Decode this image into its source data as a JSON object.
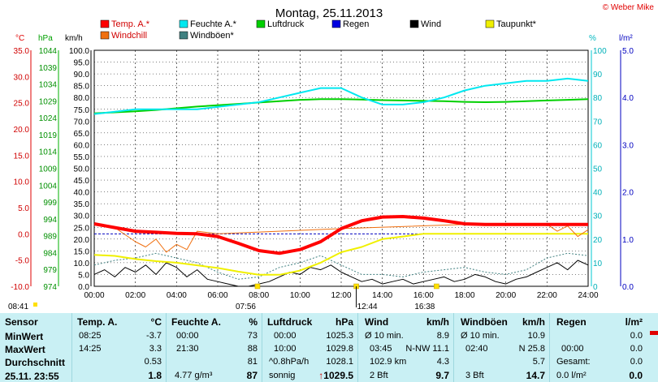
{
  "title": "Montag, 25.11.2013",
  "copyright": "© Weber Mike",
  "colors": {
    "temp": "#ff0000",
    "humidity": "#00e8f0",
    "pressure": "#00d000",
    "rain": "#0000e0",
    "wind": "#000000",
    "dewpoint": "#f0f000",
    "windchill": "#f07010",
    "gust": "#408080",
    "panel": "#c9f0f4"
  },
  "units": {
    "temp": "°C",
    "pressure": "hPa",
    "speed": "km/h",
    "humidity": "%",
    "rain": "l/m²"
  },
  "legend": [
    {
      "label": "Temp. A.*",
      "color": "#ff0000"
    },
    {
      "label": "Feuchte A.*",
      "color": "#00e8f0"
    },
    {
      "label": "Luftdruck",
      "color": "#00d000"
    },
    {
      "label": "Regen",
      "color": "#0000e0"
    },
    {
      "label": "Wind",
      "color": "#000000"
    },
    {
      "label": "Taupunkt*",
      "color": "#f0f000"
    },
    {
      "label": "Windchill",
      "color": "#f07010"
    },
    {
      "label": "Windböen*",
      "color": "#408080"
    }
  ],
  "axes": {
    "temp_ticks": [
      "35.0",
      "30.0",
      "25.0",
      "20.0",
      "15.0",
      "10.0",
      "5.0",
      "0.0",
      "-5.0",
      "-10.0"
    ],
    "pressure_ticks": [
      "1044",
      "1039",
      "1034",
      "1029",
      "1024",
      "1019",
      "1014",
      "1009",
      "1004",
      "999",
      "994",
      "989",
      "984",
      "979",
      "974"
    ],
    "speed_ticks": [
      "100.0",
      "95.0",
      "90.0",
      "85.0",
      "80.0",
      "75.0",
      "70.0",
      "65.0",
      "60.0",
      "55.0",
      "50.0",
      "45.0",
      "40.0",
      "35.0",
      "30.0",
      "25.0",
      "20.0",
      "15.0",
      "10.0",
      "5.0",
      "0.0"
    ],
    "humidity_ticks": [
      "100",
      "90",
      "80",
      "70",
      "60",
      "50",
      "40",
      "30",
      "20",
      "10",
      "0"
    ],
    "rain_ticks": [
      "5.0",
      "4.0",
      "3.0",
      "2.0",
      "1.0",
      "0.0"
    ],
    "time_ticks": [
      "00:00",
      "02:00",
      "04:00",
      "06:00",
      "08:00",
      "10:00",
      "12:00",
      "14:00",
      "16:00",
      "18:00",
      "20:00",
      "22:00",
      "24:00"
    ]
  },
  "sun_markers": {
    "sunrise_label": "08:41",
    "sunrise_time": "07:56",
    "noon_time": "12:44",
    "sunset_time": "16:38"
  },
  "chart_data": {
    "type": "line",
    "title": "Montag, 25.11.2013",
    "x_unit": "hours",
    "series": [
      {
        "name": "Temp. A.*",
        "axis": "temp",
        "x": [
          0,
          1,
          2,
          3,
          4,
          5,
          6,
          7,
          8,
          9,
          10,
          11,
          12,
          13,
          14,
          15,
          16,
          17,
          18,
          19,
          20,
          21,
          22,
          23,
          24
        ],
        "values": [
          1.9,
          1.2,
          0.5,
          0.3,
          0.1,
          0.0,
          -0.5,
          -1.8,
          -3.2,
          -3.7,
          -3.0,
          -1.5,
          1.0,
          2.5,
          3.2,
          3.3,
          3.0,
          2.5,
          1.9,
          1.8,
          1.8,
          1.8,
          1.8,
          1.8,
          1.8
        ]
      },
      {
        "name": "Feuchte A.*",
        "axis": "humidity",
        "x": [
          0,
          1,
          2,
          3,
          4,
          5,
          6,
          7,
          8,
          9,
          10,
          11,
          12,
          13,
          14,
          15,
          16,
          17,
          18,
          19,
          20,
          21,
          22,
          23,
          24
        ],
        "values": [
          73,
          74,
          75,
          75,
          75,
          75,
          76,
          77,
          78,
          80,
          82,
          84,
          84,
          80,
          77,
          77,
          78,
          80,
          83,
          85,
          86,
          87,
          87,
          88,
          87
        ]
      },
      {
        "name": "Luftdruck",
        "axis": "pressure",
        "x": [
          0,
          1,
          2,
          3,
          4,
          5,
          6,
          7,
          8,
          9,
          10,
          11,
          12,
          13,
          14,
          15,
          16,
          17,
          18,
          19,
          20,
          21,
          22,
          23,
          24
        ],
        "values": [
          1025.3,
          1025.6,
          1025.9,
          1026.3,
          1026.8,
          1027.3,
          1027.7,
          1028.1,
          1028.5,
          1028.9,
          1029.3,
          1029.5,
          1029.5,
          1029.4,
          1029.2,
          1029.1,
          1029.0,
          1028.9,
          1028.7,
          1028.6,
          1028.7,
          1028.9,
          1029.1,
          1029.3,
          1029.5
        ]
      },
      {
        "name": "Taupunkt*",
        "axis": "temp",
        "x": [
          0,
          1,
          2,
          3,
          4,
          5,
          6,
          7,
          8,
          9,
          10,
          11,
          12,
          13,
          14,
          15,
          16,
          17,
          18,
          19,
          20,
          21,
          22,
          23,
          24
        ],
        "values": [
          -4.0,
          -4.2,
          -4.8,
          -5.2,
          -5.5,
          -6.0,
          -6.5,
          -7.2,
          -7.8,
          -7.8,
          -7.0,
          -5.5,
          -3.5,
          -2.5,
          -1.0,
          -0.5,
          0.0,
          0.0,
          0.0,
          0.0,
          0.0,
          0.0,
          0.0,
          0.0,
          0.0
        ]
      },
      {
        "name": "Windchill",
        "axis": "temp",
        "x": [
          0,
          1,
          2,
          2.5,
          3,
          3.5,
          4,
          4.5,
          5,
          6,
          12,
          18,
          21,
          22,
          22.5,
          23,
          23.5,
          24
        ],
        "values": [
          1.9,
          1.2,
          -1.5,
          -2.5,
          -1.0,
          -3.5,
          -2.0,
          -3.0,
          0.5,
          0.0,
          1.0,
          1.8,
          1.8,
          1.8,
          0.5,
          1.5,
          -0.5,
          0.8
        ]
      },
      {
        "name": "Wind",
        "axis": "speed",
        "x": [
          0,
          0.5,
          1,
          1.5,
          2,
          2.5,
          3,
          3.5,
          4,
          4.5,
          5,
          5.5,
          6,
          6.5,
          7,
          7.5,
          8,
          8.5,
          9,
          9.5,
          10,
          10.5,
          11,
          11.5,
          12,
          12.5,
          13,
          13.5,
          14,
          14.5,
          15,
          15.5,
          16,
          16.5,
          17,
          17.5,
          18,
          18.5,
          19,
          19.5,
          20,
          20.5,
          21,
          21.5,
          22,
          22.5,
          23,
          23.5,
          24
        ],
        "values": [
          5,
          7,
          4,
          8,
          6,
          9,
          5,
          10,
          8,
          4,
          7,
          3,
          2,
          1,
          0,
          0,
          1,
          2,
          4,
          6,
          5,
          8,
          7,
          9,
          6,
          4,
          2,
          3,
          1,
          2,
          3,
          1,
          2,
          3,
          4,
          2,
          3,
          5,
          4,
          2,
          1,
          3,
          4,
          6,
          8,
          10,
          7,
          11,
          9
        ]
      },
      {
        "name": "Windböen*",
        "axis": "speed",
        "x": [
          0,
          1,
          2,
          3,
          4,
          5,
          6,
          7,
          8,
          9,
          10,
          11,
          12,
          13,
          14,
          15,
          16,
          17,
          18,
          19,
          20,
          21,
          22,
          23,
          24
        ],
        "values": [
          9,
          11,
          12,
          14,
          12,
          10,
          6,
          3,
          4,
          8,
          10,
          13,
          9,
          5,
          5,
          4,
          6,
          7,
          8,
          6,
          5,
          7,
          12,
          14,
          13
        ]
      },
      {
        "name": "Regen",
        "axis": "rain",
        "x": [
          0,
          24
        ],
        "values": [
          0,
          0
        ]
      }
    ]
  },
  "stats": {
    "row_labels": [
      "Sensor",
      "MinWert",
      "MaxWert",
      "Durchschnitt"
    ],
    "current_label": "25.11. 23:55",
    "temp": {
      "header": "Temp. A.",
      "unit": "°C",
      "min_time": "08:25",
      "min": "-3.7",
      "max_time": "14:25",
      "max": "3.3",
      "avg": "0.53",
      "current": "1.8"
    },
    "humidity": {
      "header": "Feuchte A.",
      "unit": "%",
      "min_time": "00:00",
      "min": "73",
      "max_time": "21:30",
      "max": "88",
      "avg": "81",
      "abs": "4.77 g/m³",
      "current": "87"
    },
    "pressure": {
      "header": "Luftdruck",
      "unit": "hPa",
      "min_time": "00:00",
      "min": "1025.3",
      "max_time": "10:00",
      "max": "1029.8",
      "trend": "^0.8hPa/h",
      "avg": "1028.1",
      "forecast": "sonnig",
      "current": "1029.5"
    },
    "wind": {
      "header": "Wind",
      "unit": "km/h",
      "avg_label": "Ø 10 min.",
      "avg": "8.9",
      "max_time": "03:45",
      "dir": "N-NW 11.1",
      "dist": "102.9 km",
      "dist_val": "4.3",
      "bft": "2 Bft",
      "current": "9.7"
    },
    "gust": {
      "header": "Windböen",
      "unit": "km/h",
      "avg_label": "Ø 10 min.",
      "avg": "10.9",
      "max_time": "02:40",
      "max": "N 25.8",
      "avg2": "5.7",
      "bft": "3 Bft",
      "current": "14.7"
    },
    "rain": {
      "header": "Regen",
      "unit": "l/m²",
      "min": "0.0",
      "time": "00:00",
      "max": "0.0",
      "total_label": "Gesamt:",
      "total": "0.0",
      "current_label": "0.0 l/m²",
      "current": "0.0"
    }
  }
}
